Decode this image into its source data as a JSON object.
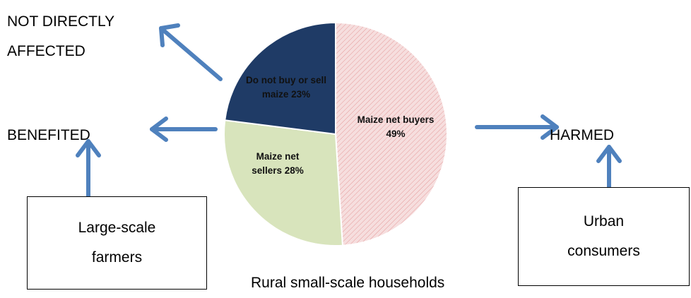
{
  "chart_data": {
    "type": "pie",
    "title": "Rural small-scale households",
    "categories": [
      "Maize net buyers",
      "Maize net sellers",
      "Do not buy or sell maize"
    ],
    "values": [
      49,
      28,
      23
    ],
    "value_labels": [
      "Maize net buyers 49%",
      "Maize net sellers 28%",
      "Do not buy or sell maize 23%"
    ],
    "colors": [
      "#f6dede",
      "#d8e4bc",
      "#1f3b66"
    ]
  },
  "outcomes": {
    "not_affected": "NOT DIRECTLY AFFECTED",
    "benefited": "BENEFITED",
    "harmed": "HARMED"
  },
  "groups": {
    "left": "Large-scale farmers",
    "right": "Urban consumers"
  }
}
